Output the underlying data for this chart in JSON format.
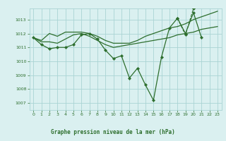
{
  "title": "Graphe pression niveau de la mer (hPa)",
  "bg_color": "#daf0f0",
  "grid_color": "#aad4d4",
  "line_color": "#2d6e2d",
  "ylim": [
    1006.5,
    1013.8
  ],
  "xlim": [
    -0.5,
    23.5
  ],
  "yticks": [
    1007,
    1008,
    1009,
    1010,
    1011,
    1012,
    1013
  ],
  "xticks": [
    0,
    1,
    2,
    3,
    4,
    5,
    6,
    7,
    8,
    9,
    10,
    11,
    12,
    13,
    14,
    15,
    16,
    17,
    18,
    19,
    20,
    21,
    22,
    23
  ],
  "series": [
    {
      "data": [
        1011.7,
        1011.2,
        1010.9,
        1011.0,
        1011.0,
        1011.2,
        1011.9,
        1012.0,
        1011.6,
        1010.8,
        1010.2,
        1010.4,
        1008.8,
        1009.5,
        1008.3,
        1007.2,
        1010.3,
        1012.4,
        1013.1,
        1012.0,
        1013.5,
        1011.7,
        null,
        null
      ],
      "marker": true,
      "linestyle": "-",
      "linewidth": 0.9
    },
    {
      "data": [
        null,
        null,
        null,
        null,
        null,
        null,
        null,
        null,
        null,
        null,
        null,
        null,
        null,
        null,
        null,
        null,
        null,
        null,
        1013.1,
        1011.9,
        1013.8,
        null,
        null,
        null
      ],
      "marker": true,
      "linestyle": "--",
      "linewidth": 0.8
    },
    {
      "data": [
        1011.7,
        1011.5,
        1012.0,
        1011.8,
        1012.1,
        1012.1,
        1012.1,
        1012.0,
        1011.8,
        1011.5,
        1011.3,
        1011.3,
        1011.3,
        1011.5,
        1011.8,
        1012.0,
        1012.2,
        1012.4,
        1012.5,
        1012.7,
        1013.0,
        1013.2,
        1013.4,
        1013.6
      ],
      "marker": false,
      "linestyle": "-",
      "linewidth": 0.9
    },
    {
      "data": [
        1011.7,
        1011.4,
        1011.4,
        1011.3,
        1011.6,
        1011.9,
        1012.0,
        1011.8,
        1011.5,
        1011.2,
        1011.0,
        1011.1,
        1011.2,
        1011.3,
        1011.4,
        1011.5,
        1011.6,
        1011.7,
        1011.9,
        1012.0,
        1012.1,
        1012.3,
        1012.4,
        1012.5
      ],
      "marker": false,
      "linestyle": "-",
      "linewidth": 0.9
    }
  ]
}
